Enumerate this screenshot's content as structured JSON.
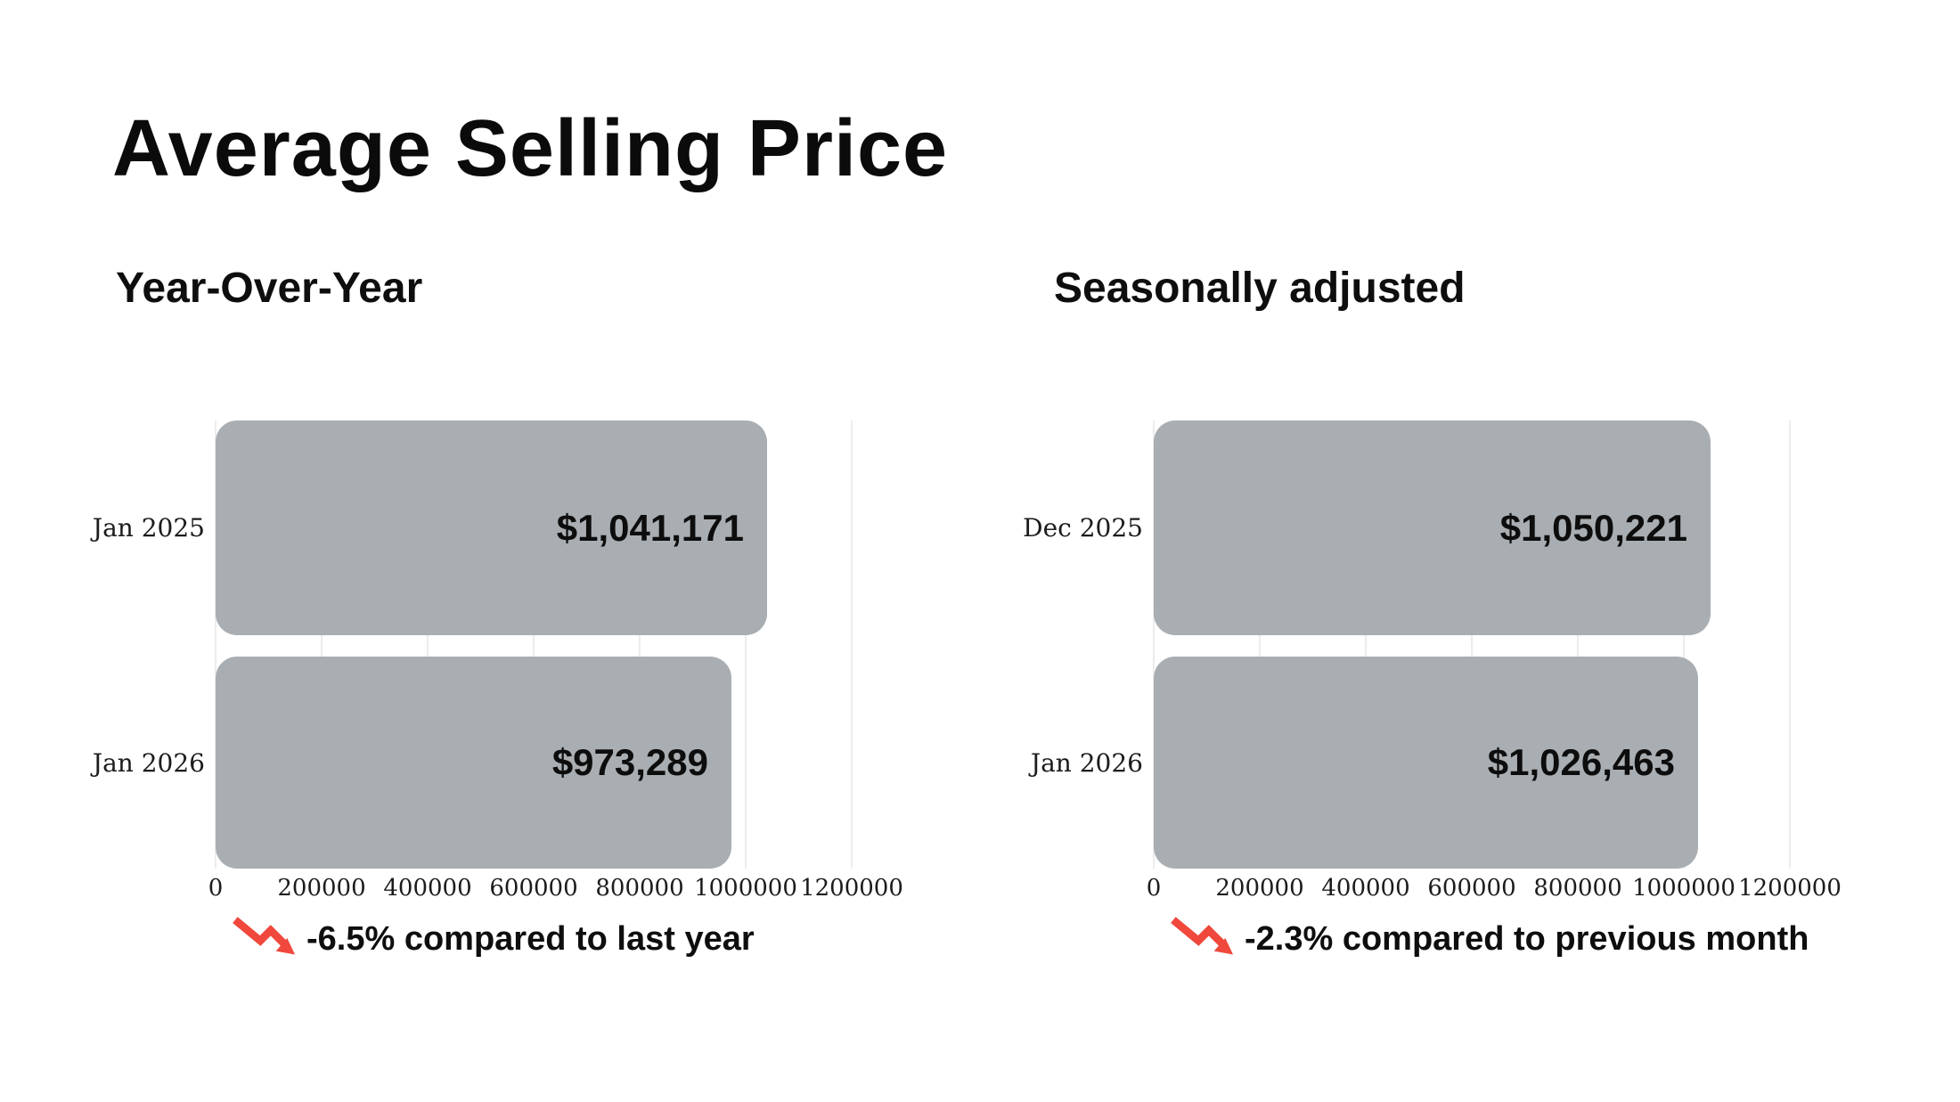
{
  "page": {
    "title": "Average Selling Price",
    "background": "#ffffff"
  },
  "colors": {
    "bar": "#a9aeb2",
    "gridline": "#ececec",
    "trend_arrow_red": "#f0483c",
    "text": "#111111"
  },
  "chart_data": [
    {
      "type": "bar",
      "orientation": "horizontal",
      "title": "Year-Over-Year",
      "categories": [
        "Jan 2025",
        "Jan 2026"
      ],
      "values": [
        1041171,
        973289
      ],
      "value_labels": [
        "$1,041,171",
        "$973,289"
      ],
      "xlim": [
        0,
        1200000
      ],
      "xticks": [
        0,
        200000,
        400000,
        600000,
        800000,
        1000000,
        1200000
      ],
      "xtick_labels": [
        "0",
        "200000",
        "400000",
        "600000",
        "800000",
        "1000000",
        "1200000"
      ],
      "grid": "vertical",
      "legend": "none",
      "annotation": "-6.5% compared to last year",
      "annotation_icon": "trending-down-arrow"
    },
    {
      "type": "bar",
      "orientation": "horizontal",
      "title": "Seasonally adjusted",
      "categories": [
        "Dec 2025",
        "Jan 2026"
      ],
      "values": [
        1050221,
        1026463
      ],
      "value_labels": [
        "$1,050,221",
        "$1,026,463"
      ],
      "xlim": [
        0,
        1200000
      ],
      "xticks": [
        0,
        200000,
        400000,
        600000,
        800000,
        1000000,
        1200000
      ],
      "xtick_labels": [
        "0",
        "200000",
        "400000",
        "600000",
        "800000",
        "1000000",
        "1200000"
      ],
      "grid": "vertical",
      "legend": "none",
      "annotation": "-2.3% compared to previous month",
      "annotation_icon": "trending-down-arrow"
    }
  ]
}
